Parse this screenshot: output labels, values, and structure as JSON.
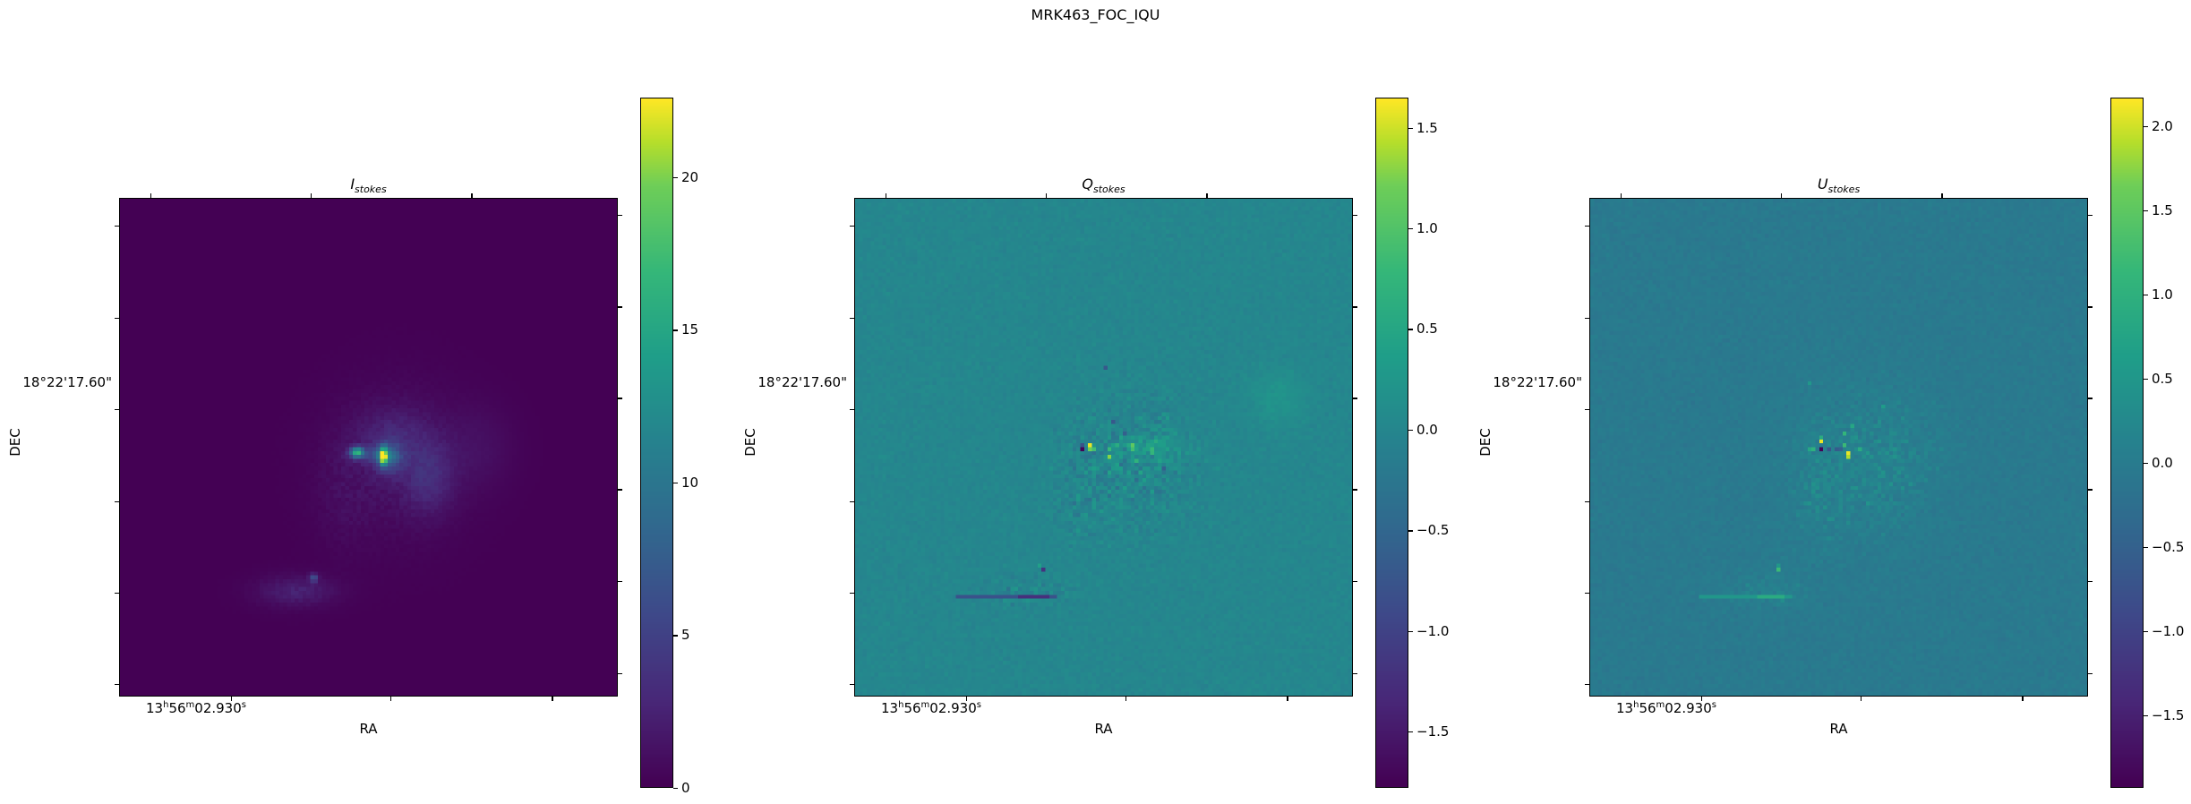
{
  "figure": {
    "title": "MRK463_FOC_IQU"
  },
  "colors": {
    "background": "#ffffff",
    "axis": "#000000",
    "cmap": "viridis"
  },
  "chart_data": [
    {
      "type": "heatmap",
      "title": {
        "symbol": "I",
        "subscript": "stokes"
      },
      "xlabel": "RA",
      "ylabel": "DEC",
      "xtick_label": {
        "h": "13",
        "h_unit": "h",
        "m": "56",
        "m_unit": "m",
        "s": "02.930",
        "s_unit": "s"
      },
      "ytick_label": "18°22'17.60\"",
      "cmap": "viridis",
      "colorbar": {
        "vmin": 0,
        "vmax": 22.6,
        "ticks": [
          0,
          5,
          10,
          15,
          20
        ],
        "tick_labels": [
          "0",
          "5",
          "10",
          "15",
          "20"
        ]
      }
    },
    {
      "type": "heatmap",
      "title": {
        "symbol": "Q",
        "subscript": "stokes"
      },
      "xlabel": "RA",
      "ylabel": "DEC",
      "xtick_label": {
        "h": "13",
        "h_unit": "h",
        "m": "56",
        "m_unit": "m",
        "s": "02.930",
        "s_unit": "s"
      },
      "ytick_label": "18°22'17.60\"",
      "cmap": "viridis",
      "colorbar": {
        "vmin": -1.78,
        "vmax": 1.65,
        "ticks": [
          -1.5,
          -1.0,
          -0.5,
          0.0,
          0.5,
          1.0,
          1.5
        ],
        "tick_labels": [
          "−1.5",
          "−1.0",
          "−0.5",
          "0.0",
          "0.5",
          "1.0",
          "1.5"
        ]
      }
    },
    {
      "type": "heatmap",
      "title": {
        "symbol": "U",
        "subscript": "stokes"
      },
      "xlabel": "RA",
      "ylabel": "DEC",
      "xtick_label": {
        "h": "13",
        "h_unit": "h",
        "m": "56",
        "m_unit": "m",
        "s": "02.930",
        "s_unit": "s"
      },
      "ytick_label": "18°22'17.60\"",
      "cmap": "viridis",
      "colorbar": {
        "vmin": -1.93,
        "vmax": 2.17,
        "ticks": [
          -1.5,
          -1.0,
          -0.5,
          0.0,
          0.5,
          1.0,
          1.5,
          2.0
        ],
        "tick_labels": [
          "−1.5",
          "−1.0",
          "−0.5",
          "0.0",
          "0.5",
          "1.0",
          "1.5",
          "2.0"
        ]
      }
    }
  ]
}
